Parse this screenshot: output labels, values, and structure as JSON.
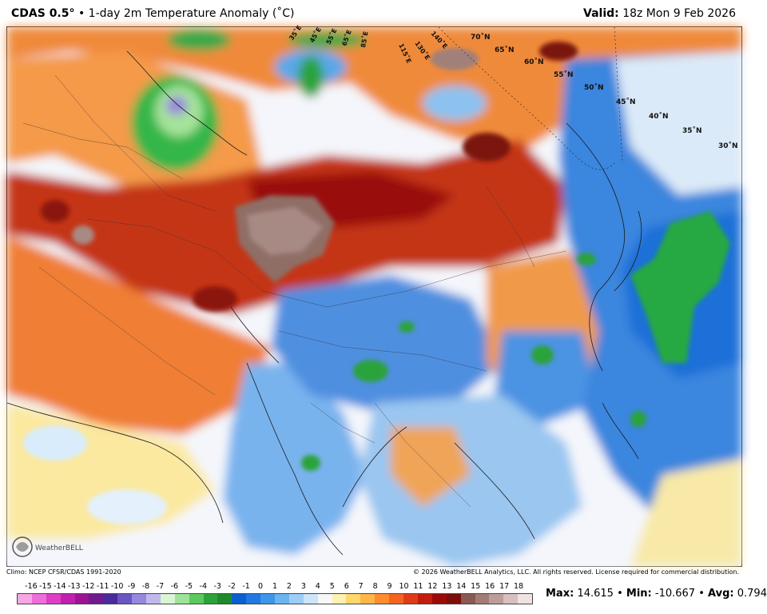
{
  "header": {
    "model": "CDAS 0.5",
    "degree_symbol": "°",
    "separator": "•",
    "product": "1-day 2m Temperature Anomaly (˚C)",
    "valid_label": "Valid:",
    "valid_value": "18z Mon 9 Feb 2026"
  },
  "map": {
    "lat_labels": [
      "70˚N",
      "65˚N",
      "60˚N",
      "55˚N",
      "50˚N",
      "45˚N",
      "40˚N",
      "35˚N",
      "30˚N"
    ],
    "lon_labels": [
      "35˚E",
      "45˚E",
      "55˚E",
      "65˚E",
      "85˚E",
      "115˚E",
      "130˚E",
      "140˚E"
    ],
    "logo_text": "WeatherBELL"
  },
  "footer": {
    "climo": "Climo: NCEP CFSR/CDAS 1991-2020",
    "copyright": "© 2026 WeatherBELL Analytics, LLC. All rights reserved. License required for commercial distribution."
  },
  "colorbar": {
    "labels": [
      "-16",
      "-15",
      "-14",
      "-13",
      "-12",
      "-11",
      "-10",
      "-9",
      "-8",
      "-7",
      "-6",
      "-5",
      "-4",
      "-3",
      "-2",
      "-1",
      "0",
      "1",
      "2",
      "3",
      "4",
      "5",
      "6",
      "7",
      "8",
      "9",
      "10",
      "11",
      "12",
      "13",
      "14",
      "15",
      "16",
      "17",
      "18"
    ],
    "colors": [
      "#f7a6e8",
      "#ee6fd8",
      "#dd3ec5",
      "#c11fae",
      "#9b1493",
      "#6f1a8e",
      "#4b2a9a",
      "#6a55c5",
      "#9688df",
      "#c3b8ee",
      "#d9f5d2",
      "#9fe39a",
      "#5cc95c",
      "#2aa33b",
      "#1f8a2c",
      "#0b5fcf",
      "#2277e0",
      "#3f95ea",
      "#6bb3f1",
      "#9ecdf6",
      "#cde5fa",
      "#f7f7f7",
      "#fff1b0",
      "#ffd86b",
      "#ffb547",
      "#ff8c2e",
      "#f4641f",
      "#df3c16",
      "#c21c10",
      "#9b0a0a",
      "#7a0f0a",
      "#8a5a52",
      "#a37c76",
      "#bd9d99",
      "#d7c0bd",
      "#f0e2e0"
    ]
  },
  "stats": {
    "max_label": "Max:",
    "max_value": "14.615",
    "min_label": "Min:",
    "min_value": "-10.667",
    "avg_label": "Avg:",
    "avg_value": "0.794"
  }
}
